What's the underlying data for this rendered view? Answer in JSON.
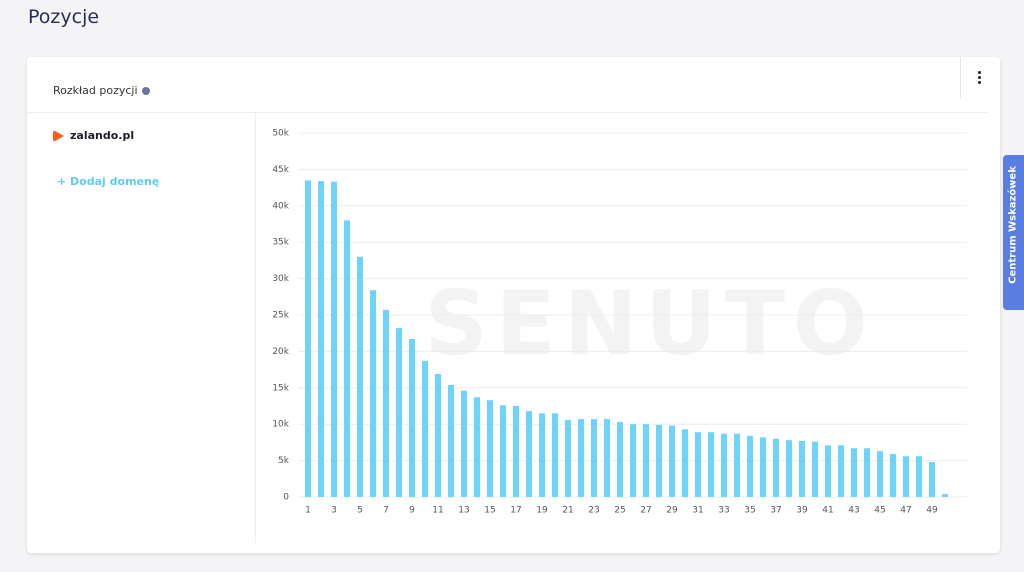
{
  "header": {
    "title": "Pozycje"
  },
  "card": {
    "title": "Rozkład pozycji",
    "domain": "zalando.pl",
    "add_domain": "+ Dodaj domenę"
  },
  "sidebar": {
    "label": "Centrum Wskazówek"
  },
  "chart_data": {
    "type": "bar",
    "watermark": "SENUTO",
    "color": "#6dd3fb",
    "grid": true,
    "categories": [
      "1",
      null,
      "3",
      null,
      "5",
      null,
      "7",
      null,
      "9",
      null,
      "11",
      null,
      "13",
      null,
      "15",
      null,
      "17",
      null,
      "19",
      null,
      "21",
      null,
      "23",
      null,
      "25",
      null,
      "27",
      null,
      "29",
      null,
      "31",
      null,
      "33",
      null,
      "35",
      null,
      "37",
      null,
      "39",
      null,
      "41",
      null,
      "43",
      null,
      "45",
      null,
      "47",
      null,
      "49",
      null
    ],
    "values": [
      43500,
      43400,
      43300,
      38000,
      33000,
      28400,
      25700,
      23200,
      21700,
      18700,
      16900,
      15400,
      14600,
      13700,
      13300,
      12600,
      12500,
      11800,
      11500,
      11500,
      10600,
      10700,
      10700,
      10700,
      10300,
      10000,
      10000,
      9900,
      9800,
      9300,
      8900,
      8900,
      8700,
      8700,
      8400,
      8200,
      8000,
      7800,
      7700,
      7600,
      7100,
      7100,
      6700,
      6700,
      6300,
      5900,
      5600,
      5600,
      4800,
      400
    ],
    "ylim": [
      0,
      50000
    ],
    "yticks": [
      0,
      {
        "value": 5000,
        "label": "5k"
      },
      {
        "value": 10000,
        "label": "10k"
      },
      {
        "value": 15000,
        "label": "15k"
      },
      {
        "value": 20000,
        "label": "20k"
      },
      {
        "value": 25000,
        "label": "25k"
      },
      {
        "value": 30000,
        "label": "30k"
      },
      {
        "value": 35000,
        "label": "35k"
      },
      {
        "value": 40000,
        "label": "40k"
      },
      {
        "value": 45000,
        "label": "45k"
      },
      {
        "value": 50000,
        "label": "50k"
      }
    ]
  }
}
